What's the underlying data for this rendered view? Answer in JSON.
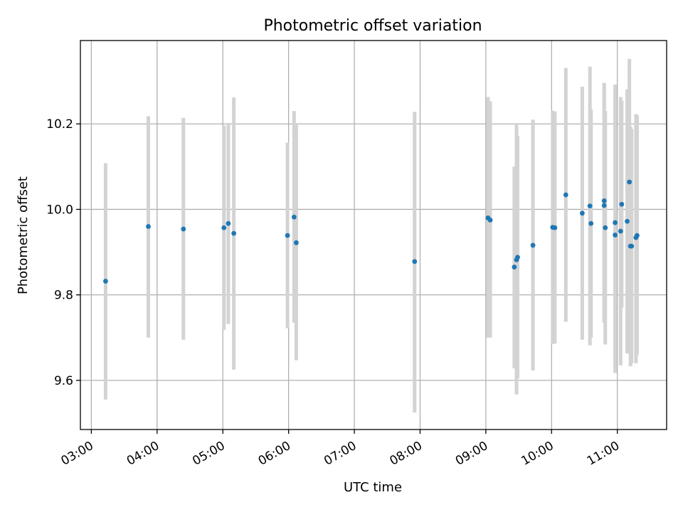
{
  "chart_data": {
    "type": "scatter",
    "title": "Photometric offset variation",
    "xlabel": "UTC time",
    "ylabel": "Photometric offset",
    "x_ticks": [
      "03:00",
      "04:00",
      "05:00",
      "06:00",
      "07:00",
      "08:00",
      "09:00",
      "10:00",
      "11:00"
    ],
    "y_ticks": [
      "9.6",
      "9.8",
      "10.0",
      "10.2"
    ],
    "xlim": [
      "02:50",
      "11:45"
    ],
    "ylim": [
      9.485,
      10.395
    ],
    "grid": true,
    "series": [
      {
        "marker_color": "#1f77b4",
        "errorbar_color": "#d3d3d3",
        "points": [
          {
            "x": "03:13",
            "y": 9.832,
            "ylo": 9.555,
            "yhi": 10.108
          },
          {
            "x": "03:52",
            "y": 9.96,
            "ylo": 9.7,
            "yhi": 10.218
          },
          {
            "x": "04:24",
            "y": 9.954,
            "ylo": 9.695,
            "yhi": 10.214
          },
          {
            "x": "05:01",
            "y": 9.957,
            "ylo": 9.718,
            "yhi": 10.196
          },
          {
            "x": "05:05",
            "y": 9.967,
            "ylo": 9.732,
            "yhi": 10.202
          },
          {
            "x": "05:10",
            "y": 9.944,
            "ylo": 9.625,
            "yhi": 10.262
          },
          {
            "x": "05:59",
            "y": 9.939,
            "ylo": 9.722,
            "yhi": 10.156
          },
          {
            "x": "06:05",
            "y": 9.982,
            "ylo": 9.735,
            "yhi": 10.23
          },
          {
            "x": "06:07",
            "y": 9.922,
            "ylo": 9.647,
            "yhi": 10.198
          },
          {
            "x": "07:55",
            "y": 9.878,
            "ylo": 9.525,
            "yhi": 10.228
          },
          {
            "x": "09:02",
            "y": 9.98,
            "ylo": 9.7,
            "yhi": 10.263
          },
          {
            "x": "09:04",
            "y": 9.975,
            "ylo": 9.7,
            "yhi": 10.253
          },
          {
            "x": "09:26",
            "y": 9.865,
            "ylo": 9.628,
            "yhi": 10.1
          },
          {
            "x": "09:28",
            "y": 9.882,
            "ylo": 9.567,
            "yhi": 10.198
          },
          {
            "x": "09:29",
            "y": 9.888,
            "ylo": 9.605,
            "yhi": 10.172
          },
          {
            "x": "09:43",
            "y": 9.916,
            "ylo": 9.623,
            "yhi": 10.21
          },
          {
            "x": "10:01",
            "y": 9.958,
            "ylo": 9.685,
            "yhi": 10.231
          },
          {
            "x": "10:03",
            "y": 9.957,
            "ylo": 9.686,
            "yhi": 10.229
          },
          {
            "x": "10:13",
            "y": 10.034,
            "ylo": 9.737,
            "yhi": 10.331
          },
          {
            "x": "10:28",
            "y": 9.991,
            "ylo": 9.695,
            "yhi": 10.287
          },
          {
            "x": "10:35",
            "y": 10.008,
            "ylo": 9.682,
            "yhi": 10.334
          },
          {
            "x": "10:36",
            "y": 9.967,
            "ylo": 9.7,
            "yhi": 10.234
          },
          {
            "x": "10:48",
            "y": 10.02,
            "ylo": 9.735,
            "yhi": 10.296
          },
          {
            "x": "10:48",
            "y": 10.009,
            "ylo": 9.735,
            "yhi": 10.286
          },
          {
            "x": "10:49",
            "y": 9.957,
            "ylo": 9.684,
            "yhi": 10.23
          },
          {
            "x": "10:58",
            "y": 9.969,
            "ylo": 9.645,
            "yhi": 10.292
          },
          {
            "x": "10:58",
            "y": 9.94,
            "ylo": 9.617,
            "yhi": 10.263
          },
          {
            "x": "11:03",
            "y": 9.949,
            "ylo": 9.635,
            "yhi": 10.263
          },
          {
            "x": "11:04",
            "y": 10.012,
            "ylo": 9.77,
            "yhi": 10.254
          },
          {
            "x": "11:09",
            "y": 9.972,
            "ylo": 9.663,
            "yhi": 10.281
          },
          {
            "x": "11:11",
            "y": 10.064,
            "ylo": 9.775,
            "yhi": 10.352
          },
          {
            "x": "11:12",
            "y": 9.914,
            "ylo": 9.633,
            "yhi": 10.194
          },
          {
            "x": "11:13",
            "y": 9.914,
            "ylo": 9.64,
            "yhi": 10.188
          },
          {
            "x": "11:17",
            "y": 9.934,
            "ylo": 9.64,
            "yhi": 10.223
          },
          {
            "x": "11:18",
            "y": 9.939,
            "ylo": 9.66,
            "yhi": 10.22
          }
        ]
      }
    ]
  }
}
